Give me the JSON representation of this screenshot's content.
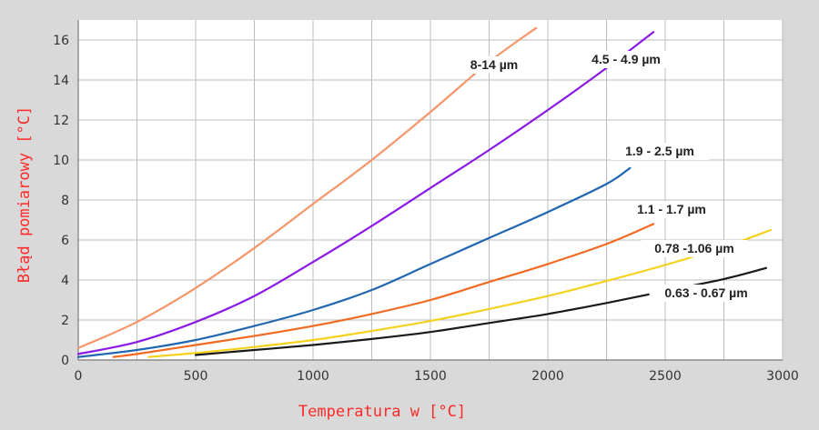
{
  "chart_data": {
    "type": "line",
    "xlabel": "Temperatura w [°C]",
    "ylabel": "Błąd pomiarowy [°C]",
    "xlim": [
      0,
      3000
    ],
    "ylim": [
      0,
      17
    ],
    "xticks": [
      "0",
      "500",
      "1000",
      "1500",
      "2000",
      "2500",
      "3000"
    ],
    "yticks": [
      "0",
      "2",
      "4",
      "6",
      "8",
      "10",
      "12",
      "14",
      "16"
    ],
    "grid": true,
    "series": [
      {
        "name": "8-14 µm",
        "color": "#f5956a",
        "x": [
          0,
          250,
          500,
          750,
          1000,
          1250,
          1500,
          1750,
          1950
        ],
        "y": [
          0.6,
          1.9,
          3.6,
          5.6,
          7.8,
          10.0,
          12.4,
          14.9,
          16.6
        ]
      },
      {
        "name": "4.5 - 4.9 µm",
        "color": "#8a1ae6",
        "x": [
          0,
          250,
          500,
          750,
          1000,
          1250,
          1500,
          1750,
          2000,
          2250,
          2450
        ],
        "y": [
          0.3,
          0.9,
          1.9,
          3.2,
          4.9,
          6.7,
          8.6,
          10.5,
          12.5,
          14.6,
          16.4
        ]
      },
      {
        "name": "1.9 - 2.5 µm",
        "color": "#2166b0",
        "x": [
          0,
          250,
          500,
          750,
          1000,
          1250,
          1500,
          1750,
          2000,
          2250,
          2350
        ],
        "y": [
          0.15,
          0.5,
          1.0,
          1.7,
          2.5,
          3.5,
          4.8,
          6.1,
          7.4,
          8.8,
          9.6
        ]
      },
      {
        "name": "1.1 - 1.7 µm",
        "color": "#f26a21",
        "x": [
          150,
          250,
          500,
          750,
          1000,
          1250,
          1500,
          1750,
          2000,
          2250,
          2450
        ],
        "y": [
          0.15,
          0.3,
          0.75,
          1.2,
          1.7,
          2.3,
          3.0,
          3.9,
          4.8,
          5.8,
          6.8
        ]
      },
      {
        "name": "0.78 -1.06 µm",
        "color": "#f4d21c",
        "x": [
          300,
          500,
          750,
          1000,
          1250,
          1500,
          1750,
          2000,
          2250,
          2500,
          2750,
          2950
        ],
        "y": [
          0.15,
          0.35,
          0.65,
          1.0,
          1.45,
          1.95,
          2.55,
          3.2,
          3.95,
          4.75,
          5.65,
          6.5
        ]
      },
      {
        "name": "0.63 - 0.67 µm",
        "color": "#1a1a1a",
        "x": [
          500,
          750,
          1000,
          1250,
          1500,
          1750,
          2000,
          2250,
          2500,
          2750,
          2930
        ],
        "y": [
          0.25,
          0.5,
          0.75,
          1.05,
          1.4,
          1.85,
          2.3,
          2.85,
          3.45,
          4.05,
          4.6
        ]
      }
    ]
  }
}
